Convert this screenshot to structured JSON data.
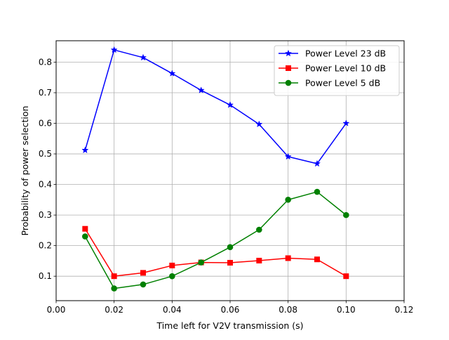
{
  "chart_data": {
    "type": "line",
    "title": "",
    "xlabel": "Time left for V2V transmission (s)",
    "ylabel": "Probability of power selection",
    "xlim": [
      0.0,
      0.12
    ],
    "ylim": [
      0.02,
      0.87
    ],
    "xticks": [
      "0.00",
      "0.02",
      "0.04",
      "0.06",
      "0.08",
      "0.10",
      "0.12"
    ],
    "yticks": [
      "0.1",
      "0.2",
      "0.3",
      "0.4",
      "0.5",
      "0.6",
      "0.7",
      "0.8"
    ],
    "grid": true,
    "legend_position": "top-right",
    "x": [
      0.01,
      0.02,
      0.03,
      0.04,
      0.05,
      0.06,
      0.07,
      0.08,
      0.09,
      0.1
    ],
    "series": [
      {
        "name": "Power Level 23 dB",
        "color": "#0000ff",
        "marker": "star",
        "values": [
          0.512,
          0.84,
          0.815,
          0.763,
          0.708,
          0.66,
          0.597,
          0.491,
          0.468,
          0.6
        ]
      },
      {
        "name": "Power Level 10 dB",
        "color": "#ff0000",
        "marker": "square",
        "values": [
          0.255,
          0.1,
          0.111,
          0.135,
          0.145,
          0.144,
          0.151,
          0.159,
          0.155,
          0.1
        ]
      },
      {
        "name": "Power Level 5 dB",
        "color": "#008000",
        "marker": "circle",
        "values": [
          0.23,
          0.06,
          0.073,
          0.1,
          0.145,
          0.195,
          0.252,
          0.35,
          0.376,
          0.3
        ]
      }
    ]
  }
}
